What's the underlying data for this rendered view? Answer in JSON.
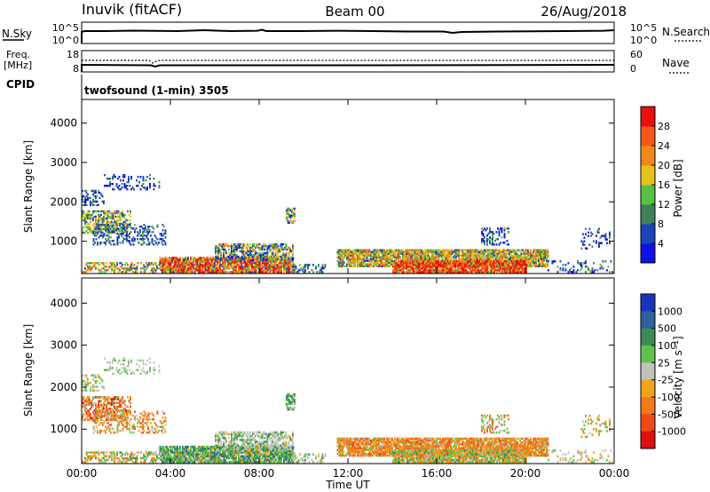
{
  "header": {
    "station": "Inuvik (fitACF)",
    "beam": "Beam 00",
    "date": "26/Aug/2018"
  },
  "summary_panels": {
    "nsky": {
      "label": "N.Sky",
      "ticks": [
        "10^5",
        "10^0"
      ]
    },
    "nsearch": {
      "label": "N.Search",
      "ticks": [
        "10^5",
        "10^0"
      ]
    },
    "freq": {
      "label_line1": "Freq.",
      "label_line2": "[MHz]",
      "ticks": [
        "18",
        "8"
      ]
    },
    "nave": {
      "label": "Nave",
      "ticks": [
        "60",
        "0"
      ]
    },
    "cpid": {
      "label": "CPID",
      "value": "twofsound (1-min) 3505"
    }
  },
  "chart_data": [
    {
      "type": "heatmap",
      "name": "power",
      "ylabel": "Slant Range [km]",
      "yticks": [
        "1000",
        "2000",
        "3000",
        "4000"
      ],
      "ylim": [
        180,
        4600
      ],
      "xlim": [
        0,
        24
      ],
      "colorbar": {
        "label": "Power [dB]",
        "ticks": [
          "4",
          "8",
          "12",
          "16",
          "20",
          "24",
          "28"
        ],
        "colors": [
          "#1010e6",
          "#1a45b8",
          "#3f7f5a",
          "#55c241",
          "#e8c21a",
          "#f08a1d",
          "#f25a1a",
          "#e81010"
        ]
      }
    },
    {
      "type": "heatmap",
      "name": "velocity",
      "ylabel": "Slant Range [km]",
      "yticks": [
        "1000",
        "2000",
        "3000",
        "4000"
      ],
      "ylim": [
        180,
        4600
      ],
      "xlim": [
        0,
        24
      ],
      "xlabel": "Time UT",
      "xticks": [
        "00:00",
        "04:00",
        "08:00",
        "12:00",
        "16:00",
        "20:00",
        "00:00"
      ],
      "colorbar": {
        "label": "Velocity [m s⁻¹]",
        "ticks": [
          "1000",
          "500",
          "100",
          "25",
          "-25",
          "-100",
          "-500",
          "-1000"
        ],
        "colors": [
          "#1836b8",
          "#2e5fa0",
          "#3d8a56",
          "#5fc34a",
          "#c2c2bc",
          "#f2a21d",
          "#f07a1d",
          "#ee4a1a",
          "#e01010"
        ]
      }
    }
  ]
}
